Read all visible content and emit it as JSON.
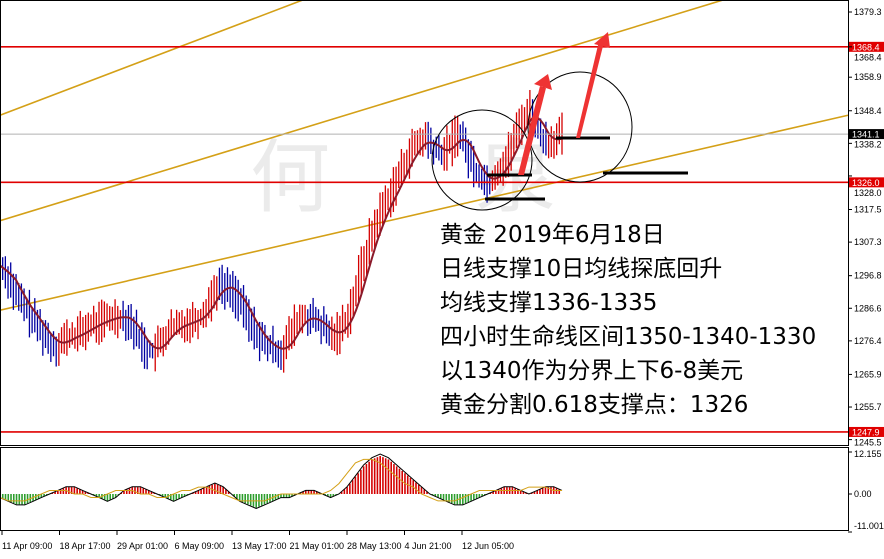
{
  "chart_data": [
    {
      "type": "candlestick",
      "title": "",
      "colors": {
        "up": "#d40000",
        "down": "#0000a0",
        "ma": "#8b1a2a",
        "support_line": "#e00000",
        "trendline": "#d4a017",
        "current_price_line": "#b0b0b0"
      },
      "y_ticks": [
        "1379.3",
        "1368.4",
        "1358.9",
        "1348.4",
        "1338.2",
        "1328.0",
        "1317.5",
        "1307.3",
        "1296.8",
        "1286.6",
        "1276.4",
        "1265.9",
        "1255.7",
        "1245.5"
      ],
      "ylim": [
        1244,
        1382
      ],
      "x_ticks": [
        "11 Apr 09:00",
        "18 Apr 17:00",
        "29 Apr 01:00",
        "6 May 09:00",
        "13 May 17:00",
        "21 May 01:00",
        "28 May 13:00",
        "4 Jun 21:00",
        "12 Jun 05:00"
      ],
      "close_approx": [
        1300,
        1296,
        1290,
        1287,
        1283,
        1280,
        1276,
        1275,
        1277,
        1278,
        1279,
        1281,
        1282,
        1283,
        1284,
        1284,
        1283,
        1278,
        1274,
        1273,
        1276,
        1280,
        1281,
        1282,
        1283,
        1284,
        1289,
        1294,
        1293,
        1292,
        1287,
        1282,
        1278,
        1275,
        1274,
        1273,
        1278,
        1283,
        1284,
        1283,
        1281,
        1278,
        1279,
        1283,
        1290,
        1300,
        1308,
        1315,
        1320,
        1325,
        1330,
        1336,
        1338,
        1340,
        1336,
        1335,
        1338,
        1342,
        1336,
        1330,
        1327,
        1326,
        1330,
        1333,
        1340,
        1346,
        1349,
        1342,
        1338,
        1340,
        1341
      ],
      "price_lines": [
        {
          "label": "1368.4",
          "price": 1368.4,
          "color": "#e00000"
        },
        {
          "label": "1326.0",
          "price": 1326.0,
          "color": "#e00000"
        },
        {
          "label": "1247.9",
          "price": 1247.9,
          "color": "#e00000"
        },
        {
          "label": "1341.1",
          "price": 1341.1,
          "color": "#000000"
        }
      ],
      "trendlines_price_left_right": [
        [
          1347,
          1448
        ],
        [
          1314,
          1395
        ],
        [
          1286,
          1347
        ]
      ]
    },
    {
      "type": "bar",
      "title": "",
      "y_ticks": [
        "12.155",
        "0.00",
        "-11.001"
      ],
      "ylim": [
        -11.001,
        12.155
      ],
      "histogram_approx": [
        -1,
        -2,
        -3,
        -3,
        -2,
        -1,
        0,
        1,
        2,
        2,
        1,
        0,
        -1,
        -2,
        -1,
        1,
        2,
        2,
        1,
        0,
        -1,
        -2,
        -1,
        0,
        1,
        2,
        3,
        2,
        0,
        -2,
        -3,
        -4,
        -3,
        -2,
        -1,
        -1,
        0,
        1,
        1,
        0,
        -1,
        0,
        2,
        5,
        8,
        10,
        11,
        10,
        8,
        6,
        4,
        2,
        0,
        -1,
        -2,
        -3,
        -3,
        -2,
        -1,
        0,
        1,
        2,
        2,
        1,
        0,
        1,
        2,
        2,
        1
      ],
      "signal_line_approx": [
        -1,
        -2,
        -2,
        -2,
        -1,
        0,
        1,
        1,
        1,
        0,
        0,
        -1,
        -1,
        0,
        1,
        1,
        1,
        0,
        0,
        -1,
        -1,
        0,
        1,
        1,
        2,
        2,
        1,
        0,
        -1,
        -2,
        -2,
        -2,
        -2,
        -1,
        0,
        0,
        0,
        0,
        0,
        0,
        1,
        3,
        6,
        9,
        10,
        10,
        9,
        7,
        5,
        3,
        2,
        0,
        -1,
        -2,
        -2,
        -2,
        -1,
        0,
        1,
        1,
        1,
        1,
        1,
        1,
        2,
        2,
        2,
        1,
        1
      ]
    }
  ],
  "annotation_text": [
    "黄金 2019年6月18日",
    "日线支撑10日均线探底回升",
    "均线支撑1336-1335",
    "四小时生命线区间1350-1340-1330",
    "以1340作为分界上下6-8美元",
    "黄金分割0.618支撑点：1326"
  ],
  "watermark": "何 泉"
}
